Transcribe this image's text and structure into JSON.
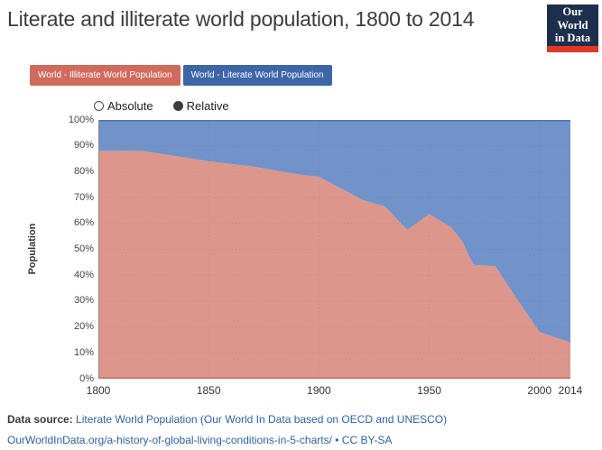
{
  "header": {
    "title": "Literate and illiterate world population, 1800 to 2014",
    "logo_line1": "Our World",
    "logo_line2": "in Data",
    "logo_bg": "#1e2f4d",
    "logo_accent": "#dd3b27"
  },
  "legend": [
    {
      "key": "illiterate",
      "label": "World - Illiterate World Population",
      "color": "#cf6a5c"
    },
    {
      "key": "literate",
      "label": "World - Literate World Population",
      "color": "#3d66a8"
    }
  ],
  "toggle": {
    "options": [
      {
        "label": "Absolute",
        "selected": false
      },
      {
        "label": "Relative",
        "selected": true
      }
    ]
  },
  "chart_data": {
    "type": "area",
    "stacked": true,
    "relative": true,
    "title": "Literate and illiterate world population, 1800 to 2014",
    "xlabel": "",
    "ylabel": "Population",
    "xlim": [
      1800,
      2014
    ],
    "ylim": [
      0,
      100
    ],
    "grid": true,
    "legend_position": "top",
    "x": [
      1800,
      1820,
      1850,
      1870,
      1890,
      1900,
      1920,
      1930,
      1940,
      1950,
      1960,
      1965,
      1970,
      1980,
      1990,
      2000,
      2006,
      2014
    ],
    "series": [
      {
        "name": "World - Illiterate World Population",
        "fill": "#d4786b",
        "stroke": "#c4584c",
        "values": [
          88,
          88,
          84,
          82,
          79,
          78,
          69,
          66.5,
          57.5,
          63.6,
          58.5,
          53,
          44,
          43.4,
          30.5,
          18,
          16.3,
          14
        ]
      },
      {
        "name": "World - Literate World Population",
        "fill": "#4a74ba",
        "stroke": "#3b63a2",
        "values": [
          12,
          12,
          16,
          18,
          21,
          22,
          31,
          33.5,
          42.5,
          36.4,
          41.5,
          47,
          56,
          56.6,
          69.5,
          82,
          83.7,
          86
        ]
      }
    ],
    "x_ticks": [
      1800,
      1850,
      1900,
      1950,
      2000,
      2014
    ],
    "y_ticks": [
      0,
      10,
      20,
      30,
      40,
      50,
      60,
      70,
      80,
      90,
      100
    ],
    "y_tick_suffix": "%"
  },
  "footer": {
    "source_label": "Data source: ",
    "source_link": "Literate World Population (Our World In Data based on OECD and UNESCO)",
    "url_link": "OurWorldInData.org/a-history-of-global-living-conditions-in-5-charts/",
    "separator": " • ",
    "license": "CC BY-SA"
  }
}
